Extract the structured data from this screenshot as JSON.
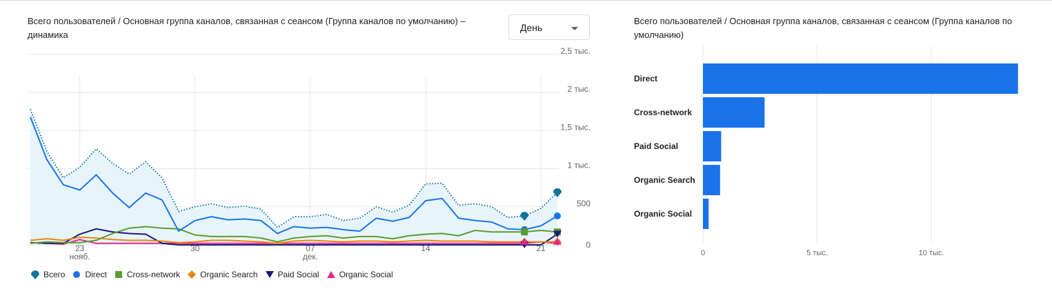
{
  "line_panel": {
    "title": "Всего пользователей / Основная группа каналов, связанная с сеансом (Группа каналов по умолчанию) – динамика",
    "dropdown_value": "День"
  },
  "bar_panel": {
    "title": "Всего пользователей / Основная группа каналов, связанная с сеансом (Группа каналов по умолчанию)"
  },
  "colors": {
    "total": "#1a73e8",
    "total_marker": "#12739e",
    "direct": "#1a73e8",
    "cross_network": "#5b9b32",
    "organic_search": "#e8870e",
    "paid_social": "#1b1a7a",
    "organic_social": "#e52592",
    "bar": "#1a73e8",
    "area": "#e8f4fb"
  },
  "chart_data": [
    {
      "type": "line",
      "title": "Всего пользователей / Основная группа каналов, связанная с сеансом (Группа каналов по умолчанию) – динамика",
      "x_ticks": [
        {
          "day": 23,
          "label": "23",
          "sub": "нояб."
        },
        {
          "day": 30,
          "label": "30",
          "sub": ""
        },
        {
          "day": 37,
          "label": "07",
          "sub": "дек."
        },
        {
          "day": 44,
          "label": "14",
          "sub": ""
        },
        {
          "day": 51,
          "label": "21",
          "sub": ""
        }
      ],
      "x_range": [
        20,
        53
      ],
      "y_ticks": [
        {
          "value": 0,
          "label": "0"
        },
        {
          "value": 500,
          "label": "500"
        },
        {
          "value": 1000,
          "label": "1 тыс."
        },
        {
          "value": 1500,
          "label": "1,5 тыс."
        },
        {
          "value": 2000,
          "label": "2 тыс."
        },
        {
          "value": 2500,
          "label": "2,5 тыс."
        }
      ],
      "ylim": [
        0,
        2500
      ],
      "legend_position": "bottom",
      "series": [
        {
          "name": "Всего",
          "key": "total",
          "style": "dotted",
          "marker": "pin",
          "values": [
            1780,
            1230,
            880,
            1020,
            1260,
            1070,
            930,
            1090,
            880,
            440,
            500,
            540,
            490,
            510,
            470,
            230,
            370,
            370,
            400,
            320,
            350,
            500,
            430,
            520,
            800,
            810,
            520,
            540,
            500,
            360,
            380,
            480,
            690
          ]
        },
        {
          "name": "Direct",
          "key": "direct",
          "style": "solid",
          "marker": "circle",
          "values": [
            1680,
            1120,
            790,
            720,
            920,
            680,
            490,
            680,
            590,
            180,
            320,
            370,
            330,
            340,
            320,
            150,
            240,
            220,
            230,
            200,
            180,
            350,
            310,
            360,
            580,
            610,
            350,
            320,
            300,
            210,
            200,
            250,
            380
          ]
        },
        {
          "name": "Cross-network",
          "key": "cross_network",
          "style": "solid",
          "marker": "square",
          "values": [
            20,
            40,
            30,
            30,
            60,
            150,
            220,
            240,
            220,
            210,
            130,
            110,
            110,
            110,
            90,
            40,
            90,
            110,
            120,
            90,
            110,
            110,
            80,
            120,
            140,
            150,
            120,
            190,
            170,
            170,
            170,
            190,
            170
          ]
        },
        {
          "name": "Organic Search",
          "key": "organic_search",
          "style": "solid",
          "marker": "diamond",
          "values": [
            60,
            80,
            60,
            100,
            90,
            70,
            60,
            60,
            50,
            30,
            40,
            60,
            60,
            50,
            40,
            20,
            50,
            60,
            50,
            40,
            50,
            50,
            40,
            50,
            60,
            50,
            50,
            50,
            40,
            40,
            40,
            40,
            40
          ]
        },
        {
          "name": "Paid Social",
          "key": "paid_social",
          "style": "solid",
          "marker": "triangle-down",
          "values": [
            30,
            20,
            20,
            140,
            210,
            170,
            150,
            140,
            20,
            0,
            0,
            0,
            0,
            0,
            0,
            0,
            0,
            0,
            0,
            0,
            0,
            0,
            0,
            0,
            0,
            0,
            0,
            0,
            0,
            0,
            0,
            0,
            140
          ]
        },
        {
          "name": "Organic Social",
          "key": "organic_social",
          "style": "solid",
          "marker": "triangle-up",
          "values": [
            30,
            20,
            10,
            70,
            20,
            20,
            20,
            20,
            20,
            20,
            20,
            20,
            20,
            20,
            20,
            20,
            20,
            20,
            20,
            20,
            20,
            20,
            20,
            20,
            20,
            20,
            20,
            20,
            20,
            20,
            20,
            40,
            20
          ]
        }
      ]
    },
    {
      "type": "bar",
      "orientation": "horizontal",
      "title": "Всего пользователей / Основная группа каналов, связанная с сеансом (Группа каналов по умолчанию)",
      "categories": [
        "Direct",
        "Cross-network",
        "Paid Social",
        "Organic Search",
        "Organic Social"
      ],
      "values": [
        13800,
        2700,
        800,
        750,
        250
      ],
      "x_ticks": [
        {
          "value": 0,
          "label": "0"
        },
        {
          "value": 5000,
          "label": "5 тыс."
        },
        {
          "value": 10000,
          "label": "10 тыс."
        }
      ],
      "xlim": [
        0,
        14000
      ]
    }
  ]
}
